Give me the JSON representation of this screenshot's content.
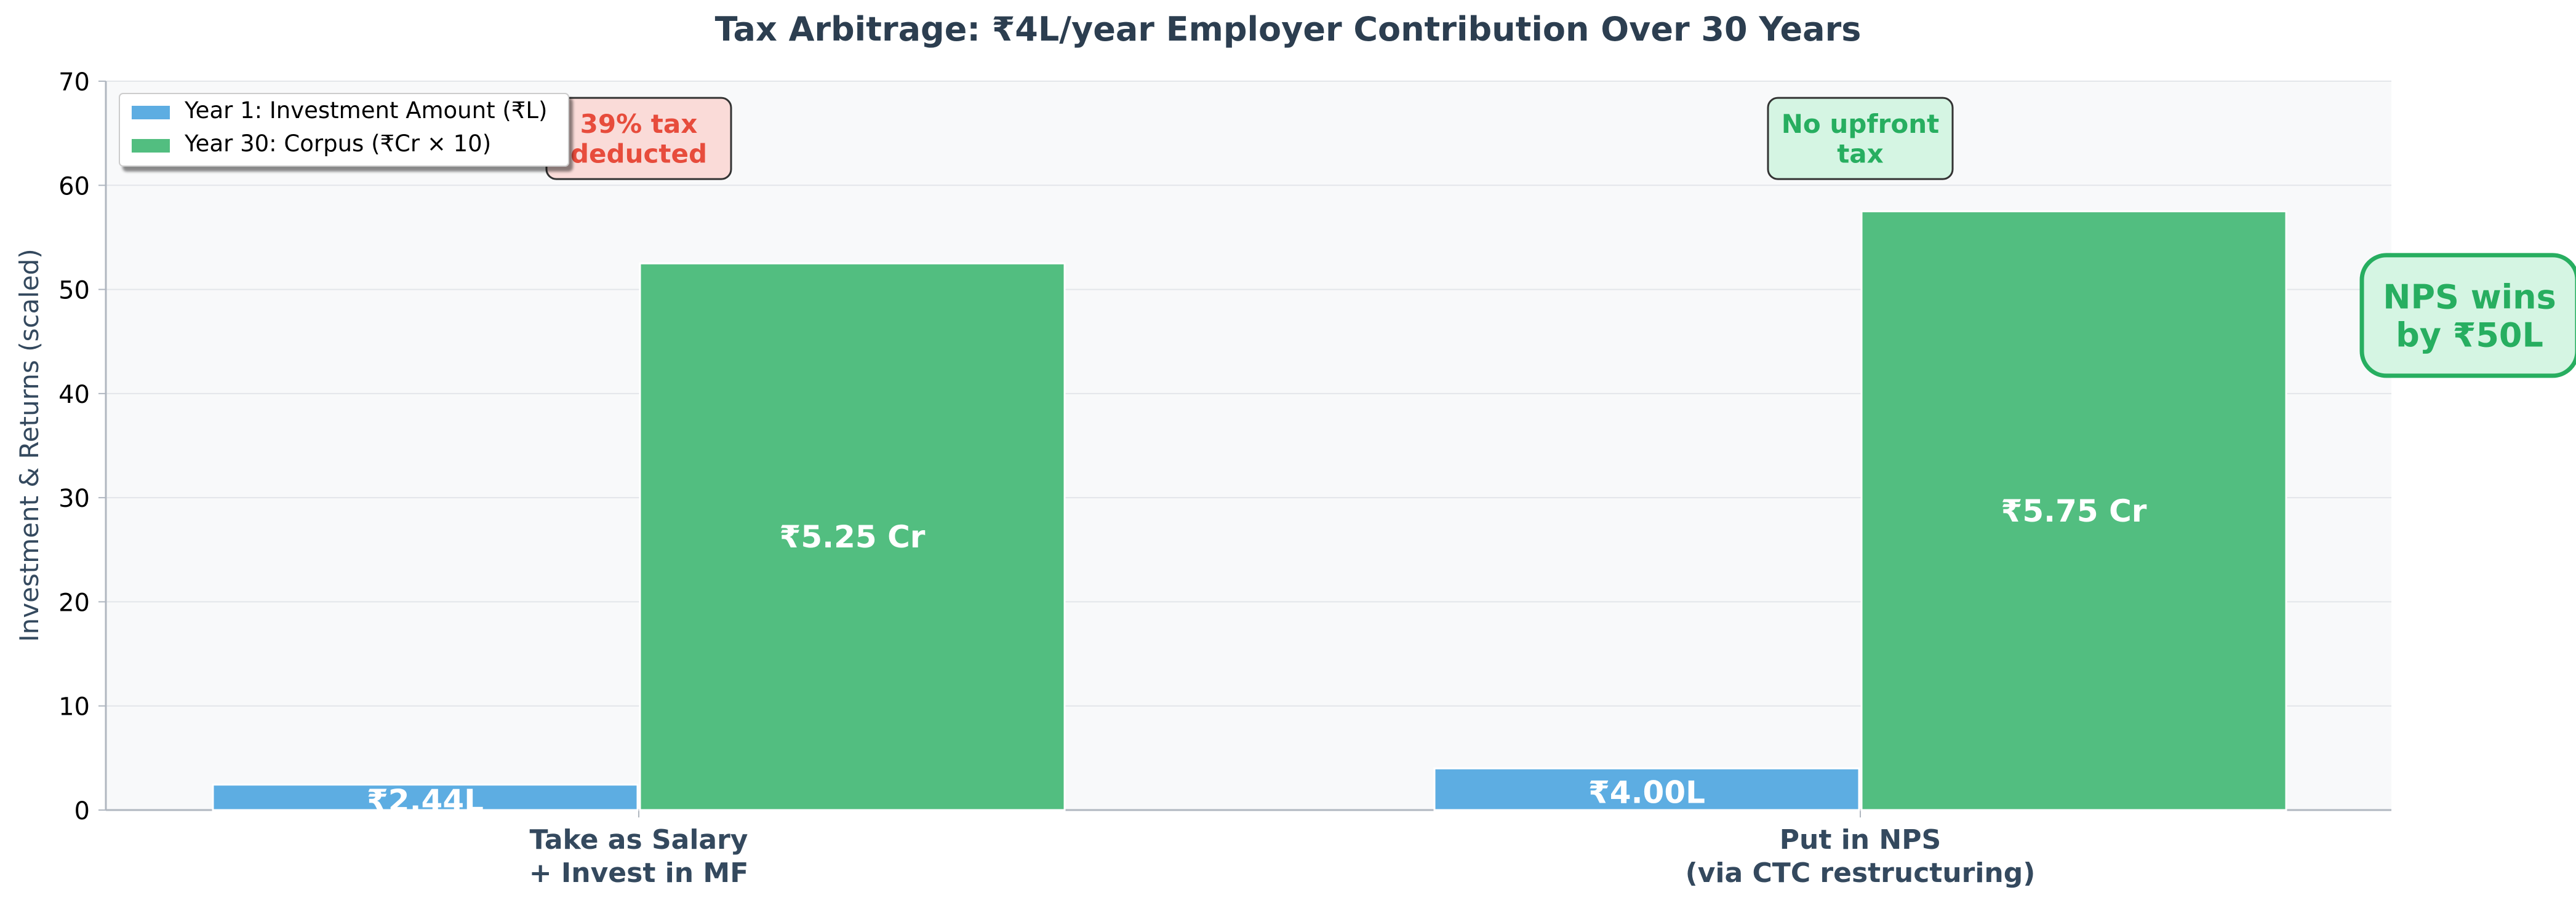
{
  "chart_data": {
    "type": "bar",
    "title": "Tax Arbitrage: ₹4L/year Employer Contribution Over 30 Years",
    "xlabel": "",
    "ylabel": "Investment & Returns (scaled)",
    "ylim": [
      0,
      70
    ],
    "yticks": [
      0,
      10,
      20,
      30,
      40,
      50,
      60,
      70
    ],
    "grid": true,
    "legend_position": "top-left",
    "categories": [
      [
        "Take as Salary",
        "+ Invest in MF"
      ],
      [
        "Put in NPS",
        "(via CTC restructuring)"
      ]
    ],
    "series": [
      {
        "name": "Year 1: Investment Amount (₹L)",
        "color": "#5dade2",
        "values": [
          2.44,
          4.0
        ],
        "labels": [
          "₹2.44L",
          "₹4.00L"
        ]
      },
      {
        "name": "Year 30: Corpus (₹Cr × 10)",
        "color": "#52be80",
        "values": [
          52.5,
          57.5
        ],
        "labels": [
          "₹5.25 Cr",
          "₹5.75 Cr"
        ]
      }
    ],
    "annotations": [
      {
        "lines": [
          "39% tax",
          "deducted"
        ],
        "category": 0,
        "y": 64.5,
        "text_color": "#e74c3c",
        "box_color": "#fadbd8"
      },
      {
        "lines": [
          "No upfront",
          "tax"
        ],
        "category": 1,
        "y": 64.5,
        "text_color": "#27ae60",
        "box_color": "#d5f5e3"
      },
      {
        "lines": [
          "NPS wins",
          "by ₹50L"
        ],
        "position": "right",
        "y": 47.5,
        "text_color": "#27ae60",
        "box_color": "#d5f5e3",
        "border_color": "#27ae60"
      }
    ]
  }
}
